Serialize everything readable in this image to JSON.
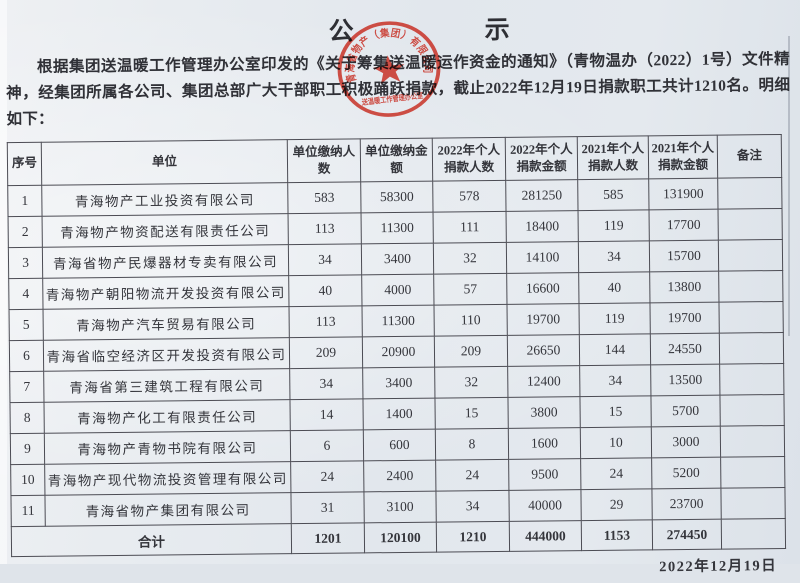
{
  "page": {
    "title_chars": [
      "公",
      "示"
    ],
    "intro": "根据集团送温暖工作管理办公室印发的《关于筹集送温暖运作资金的通知》（青物温办（2022）1号）文件精神，经集团所属各公司、集团总部广大干部职工积极踊跃捐款，截止2022年12月19日捐款职工共计1210名。明细如下：",
    "date": "2022年12月19日"
  },
  "stamp": {
    "arc_text": "青海省物产（集团）有限公司",
    "bottom_text": "送温暖工作管理办公室",
    "color": "#c9362c"
  },
  "table": {
    "headers": [
      "序号",
      "单位",
      "单位缴纳人数",
      "单位缴纳金额",
      "2022年个人捐款人数",
      "2022年个人捐款金额",
      "2021年个人捐款人数",
      "2021年个人捐款金额",
      "备注"
    ],
    "rows": [
      [
        "1",
        "青海物产工业投资有限公司",
        "583",
        "58300",
        "578",
        "281250",
        "585",
        "131900",
        ""
      ],
      [
        "2",
        "青海物产物资配送有限责任公司",
        "113",
        "11300",
        "111",
        "18400",
        "119",
        "17700",
        ""
      ],
      [
        "3",
        "青海省物产民爆器材专卖有限公司",
        "34",
        "3400",
        "32",
        "14100",
        "34",
        "15700",
        ""
      ],
      [
        "4",
        "青海物产朝阳物流开发投资有限公司",
        "40",
        "4000",
        "57",
        "16600",
        "40",
        "13800",
        ""
      ],
      [
        "5",
        "青海物产汽车贸易有限公司",
        "113",
        "11300",
        "110",
        "19700",
        "119",
        "19700",
        ""
      ],
      [
        "6",
        "青海省临空经济区开发投资有限公司",
        "209",
        "20900",
        "209",
        "26650",
        "144",
        "24550",
        ""
      ],
      [
        "7",
        "青海省第三建筑工程有限公司",
        "34",
        "3400",
        "32",
        "12400",
        "34",
        "13500",
        ""
      ],
      [
        "8",
        "青海物产化工有限责任公司",
        "14",
        "1400",
        "15",
        "3800",
        "15",
        "5700",
        ""
      ],
      [
        "9",
        "青海物产青物书院有限公司",
        "6",
        "600",
        "8",
        "1600",
        "10",
        "3000",
        ""
      ],
      [
        "10",
        "青海物产现代物流投资管理有限公司",
        "24",
        "2400",
        "24",
        "9500",
        "24",
        "5200",
        ""
      ],
      [
        "11",
        "青海省物产集团有限公司",
        "31",
        "3100",
        "34",
        "40000",
        "29",
        "23700",
        ""
      ]
    ],
    "total_label": "合计",
    "totals": [
      "1201",
      "120100",
      "1210",
      "444000",
      "1153",
      "274450",
      ""
    ]
  }
}
